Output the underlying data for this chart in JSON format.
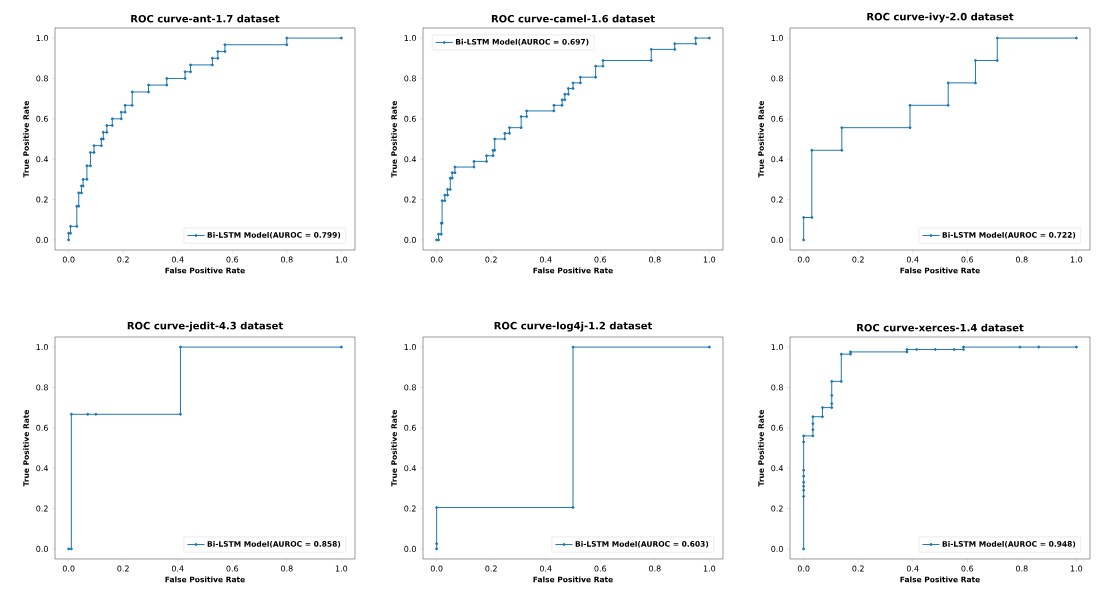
{
  "chart_data": [
    {
      "type": "line",
      "title": "ROC curve-ant-1.7 dataset",
      "xlabel": "False Positive Rate",
      "ylabel": "True Positive Rate",
      "xlim": [
        -0.05,
        1.05
      ],
      "ylim": [
        -0.05,
        1.05
      ],
      "xticks": [
        {
          "value": 0,
          "label": "0.0"
        },
        {
          "value": 0.2,
          "label": "0.2"
        },
        {
          "value": 0.4,
          "label": "0.4"
        },
        {
          "value": 0.6,
          "label": "0.6"
        },
        {
          "value": 0.8,
          "label": "0.8"
        },
        {
          "value": 1,
          "label": "1.0"
        }
      ],
      "yticks": [
        {
          "value": 0,
          "label": "0.0"
        },
        {
          "value": 0.2,
          "label": "0.2"
        },
        {
          "value": 0.4,
          "label": "0.4"
        },
        {
          "value": 0.6,
          "label": "0.6"
        },
        {
          "value": 0.8,
          "label": "0.8"
        },
        {
          "value": 1,
          "label": "1.0"
        }
      ],
      "legend": "bottom right",
      "marker": "circle",
      "line_style": "solid",
      "series": [
        {
          "name": "Bi-LSTM Model(AUROC = 0.799)",
          "color": "#1f77b4",
          "x": [
            0,
            0,
            0.007,
            0.007,
            0.03,
            0.03,
            0.037,
            0.037,
            0.047,
            0.047,
            0.053,
            0.053,
            0.067,
            0.067,
            0.08,
            0.08,
            0.093,
            0.093,
            0.12,
            0.12,
            0.127,
            0.127,
            0.14,
            0.14,
            0.16,
            0.16,
            0.193,
            0.193,
            0.207,
            0.207,
            0.233,
            0.233,
            0.293,
            0.293,
            0.36,
            0.36,
            0.427,
            0.427,
            0.447,
            0.447,
            0.527,
            0.527,
            0.547,
            0.547,
            0.573,
            0.573,
            0.8,
            0.8,
            1
          ],
          "values": [
            0,
            0.033,
            0.033,
            0.067,
            0.067,
            0.167,
            0.167,
            0.233,
            0.233,
            0.267,
            0.267,
            0.3,
            0.3,
            0.367,
            0.367,
            0.433,
            0.433,
            0.467,
            0.467,
            0.5,
            0.5,
            0.533,
            0.533,
            0.567,
            0.567,
            0.6,
            0.6,
            0.633,
            0.633,
            0.667,
            0.667,
            0.733,
            0.733,
            0.767,
            0.767,
            0.8,
            0.8,
            0.833,
            0.833,
            0.867,
            0.867,
            0.9,
            0.9,
            0.933,
            0.933,
            0.967,
            0.967,
            1,
            1
          ]
        }
      ]
    },
    {
      "type": "line",
      "title": "ROC curve-camel-1.6 dataset",
      "xlabel": "False Positive Rate",
      "ylabel": "True Positive Rate",
      "xlim": [
        -0.05,
        1.05
      ],
      "ylim": [
        -0.05,
        1.05
      ],
      "xticks": [
        {
          "value": 0,
          "label": "0.0"
        },
        {
          "value": 0.2,
          "label": "0.2"
        },
        {
          "value": 0.4,
          "label": "0.4"
        },
        {
          "value": 0.6,
          "label": "0.6"
        },
        {
          "value": 0.8,
          "label": "0.8"
        },
        {
          "value": 1,
          "label": "1.0"
        }
      ],
      "yticks": [
        {
          "value": 0,
          "label": "0.0"
        },
        {
          "value": 0.2,
          "label": "0.2"
        },
        {
          "value": 0.4,
          "label": "0.4"
        },
        {
          "value": 0.6,
          "label": "0.6"
        },
        {
          "value": 0.8,
          "label": "0.8"
        },
        {
          "value": 1,
          "label": "1.0"
        }
      ],
      "legend": "top left",
      "marker": "circle",
      "line_style": "solid",
      "series": [
        {
          "name": "Bi-LSTM Model(AUROC = 0.697)",
          "color": "#1f77b4",
          "x": [
            0,
            0.007,
            0.007,
            0.017,
            0.017,
            0.02,
            0.02,
            0.03,
            0.03,
            0.04,
            0.04,
            0.05,
            0.05,
            0.057,
            0.057,
            0.067,
            0.067,
            0.137,
            0.137,
            0.183,
            0.183,
            0.207,
            0.207,
            0.213,
            0.213,
            0.25,
            0.25,
            0.267,
            0.267,
            0.31,
            0.31,
            0.33,
            0.33,
            0.43,
            0.43,
            0.46,
            0.46,
            0.47,
            0.47,
            0.483,
            0.483,
            0.5,
            0.5,
            0.527,
            0.527,
            0.583,
            0.583,
            0.61,
            0.61,
            0.787,
            0.787,
            0.873,
            0.873,
            0.95,
            0.95,
            1
          ],
          "values": [
            0,
            0,
            0.028,
            0.028,
            0.083,
            0.083,
            0.194,
            0.194,
            0.222,
            0.222,
            0.25,
            0.25,
            0.306,
            0.306,
            0.333,
            0.333,
            0.361,
            0.361,
            0.389,
            0.389,
            0.417,
            0.417,
            0.444,
            0.444,
            0.5,
            0.5,
            0.528,
            0.528,
            0.556,
            0.556,
            0.611,
            0.611,
            0.639,
            0.639,
            0.667,
            0.667,
            0.694,
            0.694,
            0.722,
            0.722,
            0.75,
            0.75,
            0.778,
            0.778,
            0.806,
            0.806,
            0.861,
            0.861,
            0.889,
            0.889,
            0.944,
            0.944,
            0.972,
            0.972,
            1,
            1
          ]
        }
      ]
    },
    {
      "type": "line",
      "title": "ROC curve-ivy-2.0 dataset",
      "xlabel": "False Positive Rate",
      "ylabel": "True Positive Rate",
      "xlim": [
        -0.05,
        1.05
      ],
      "ylim": [
        -0.05,
        1.05
      ],
      "xticks": [
        {
          "value": 0,
          "label": "0.0"
        },
        {
          "value": 0.2,
          "label": "0.2"
        },
        {
          "value": 0.4,
          "label": "0.4"
        },
        {
          "value": 0.6,
          "label": "0.6"
        },
        {
          "value": 0.8,
          "label": "0.8"
        },
        {
          "value": 1,
          "label": "1.0"
        }
      ],
      "yticks": [
        {
          "value": 0,
          "label": "0.0"
        },
        {
          "value": 0.2,
          "label": "0.2"
        },
        {
          "value": 0.4,
          "label": "0.4"
        },
        {
          "value": 0.6,
          "label": "0.6"
        },
        {
          "value": 0.8,
          "label": "0.8"
        },
        {
          "value": 1,
          "label": "1.0"
        }
      ],
      "legend": "bottom right",
      "marker": "circle",
      "line_style": "solid",
      "series": [
        {
          "name": "Bi-LSTM Model(AUROC = 0.722)",
          "color": "#1f77b4",
          "x": [
            0,
            0,
            0.03,
            0.03,
            0.14,
            0.14,
            0.39,
            0.39,
            0.53,
            0.53,
            0.63,
            0.63,
            0.71,
            0.71,
            1
          ],
          "values": [
            0,
            0.111,
            0.111,
            0.444,
            0.444,
            0.556,
            0.556,
            0.667,
            0.667,
            0.778,
            0.778,
            0.889,
            0.889,
            1,
            1
          ]
        }
      ]
    },
    {
      "type": "line",
      "title": "ROC curve-jedit-4.3 dataset",
      "xlabel": "False Positive Rate",
      "ylabel": "True Positive Rate",
      "xlim": [
        -0.05,
        1.05
      ],
      "ylim": [
        -0.05,
        1.05
      ],
      "xticks": [
        {
          "value": 0,
          "label": "0.0"
        },
        {
          "value": 0.2,
          "label": "0.2"
        },
        {
          "value": 0.4,
          "label": "0.4"
        },
        {
          "value": 0.6,
          "label": "0.6"
        },
        {
          "value": 0.8,
          "label": "0.8"
        },
        {
          "value": 1,
          "label": "1.0"
        }
      ],
      "yticks": [
        {
          "value": 0,
          "label": "0.0"
        },
        {
          "value": 0.2,
          "label": "0.2"
        },
        {
          "value": 0.4,
          "label": "0.4"
        },
        {
          "value": 0.6,
          "label": "0.6"
        },
        {
          "value": 0.8,
          "label": "0.8"
        },
        {
          "value": 1,
          "label": "1.0"
        }
      ],
      "legend": "bottom right",
      "marker": "circle",
      "line_style": "solid",
      "series": [
        {
          "name": "Bi-LSTM Model(AUROC = 0.858)",
          "color": "#1f77b4",
          "x": [
            0,
            0.01,
            0.01,
            0.07,
            0.1,
            0.41,
            0.41,
            1
          ],
          "values": [
            0,
            0,
            0.667,
            0.667,
            0.667,
            0.667,
            1,
            1
          ]
        }
      ]
    },
    {
      "type": "line",
      "title": "ROC curve-log4j-1.2 dataset",
      "xlabel": "False Positive Rate",
      "ylabel": "True Positive Rate",
      "xlim": [
        -0.05,
        1.05
      ],
      "ylim": [
        -0.05,
        1.05
      ],
      "xticks": [
        {
          "value": 0,
          "label": "0.0"
        },
        {
          "value": 0.2,
          "label": "0.2"
        },
        {
          "value": 0.4,
          "label": "0.4"
        },
        {
          "value": 0.6,
          "label": "0.6"
        },
        {
          "value": 0.8,
          "label": "0.8"
        },
        {
          "value": 1,
          "label": "1.0"
        }
      ],
      "yticks": [
        {
          "value": 0,
          "label": "0.0"
        },
        {
          "value": 0.2,
          "label": "0.2"
        },
        {
          "value": 0.4,
          "label": "0.4"
        },
        {
          "value": 0.6,
          "label": "0.6"
        },
        {
          "value": 0.8,
          "label": "0.8"
        },
        {
          "value": 1,
          "label": "1.0"
        }
      ],
      "legend": "bottom right",
      "marker": "circle",
      "line_style": "solid",
      "series": [
        {
          "name": "Bi-LSTM Model(AUROC = 0.603)",
          "color": "#1f77b4",
          "x": [
            0,
            0,
            0,
            0.5,
            0.5,
            1
          ],
          "values": [
            0,
            0.026,
            0.205,
            0.205,
            1,
            1
          ]
        }
      ]
    },
    {
      "type": "line",
      "title": "ROC curve-xerces-1.4 dataset",
      "xlabel": "False Positive Rate",
      "ylabel": "True Positive Rate",
      "xlim": [
        -0.05,
        1.05
      ],
      "ylim": [
        -0.05,
        1.05
      ],
      "xticks": [
        {
          "value": 0,
          "label": "0.0"
        },
        {
          "value": 0.2,
          "label": "0.2"
        },
        {
          "value": 0.4,
          "label": "0.4"
        },
        {
          "value": 0.6,
          "label": "0.6"
        },
        {
          "value": 0.8,
          "label": "0.8"
        },
        {
          "value": 1,
          "label": "1.0"
        }
      ],
      "yticks": [
        {
          "value": 0,
          "label": "0.0"
        },
        {
          "value": 0.2,
          "label": "0.2"
        },
        {
          "value": 0.4,
          "label": "0.4"
        },
        {
          "value": 0.6,
          "label": "0.6"
        },
        {
          "value": 0.8,
          "label": "0.8"
        },
        {
          "value": 1,
          "label": "1.0"
        }
      ],
      "legend": "bottom right",
      "marker": "circle",
      "line_style": "solid",
      "series": [
        {
          "name": "Bi-LSTM Model(AUROC = 0.948)",
          "color": "#1f77b4",
          "x": [
            0,
            0,
            0,
            0,
            0,
            0,
            0,
            0,
            0,
            0.034,
            0.034,
            0.034,
            0.034,
            0.069,
            0.069,
            0.103,
            0.103,
            0.103,
            0.103,
            0.138,
            0.138,
            0.172,
            0.172,
            0.379,
            0.379,
            0.414,
            0.483,
            0.552,
            0.586,
            0.586,
            0.793,
            0.862,
            1
          ],
          "values": [
            0,
            0.26,
            0.29,
            0.31,
            0.33,
            0.36,
            0.39,
            0.53,
            0.56,
            0.56,
            0.59,
            0.62,
            0.655,
            0.655,
            0.7,
            0.7,
            0.72,
            0.76,
            0.83,
            0.83,
            0.965,
            0.965,
            0.976,
            0.976,
            0.988,
            0.988,
            0.988,
            0.988,
            0.988,
            1,
            1,
            1,
            1
          ]
        }
      ]
    }
  ]
}
